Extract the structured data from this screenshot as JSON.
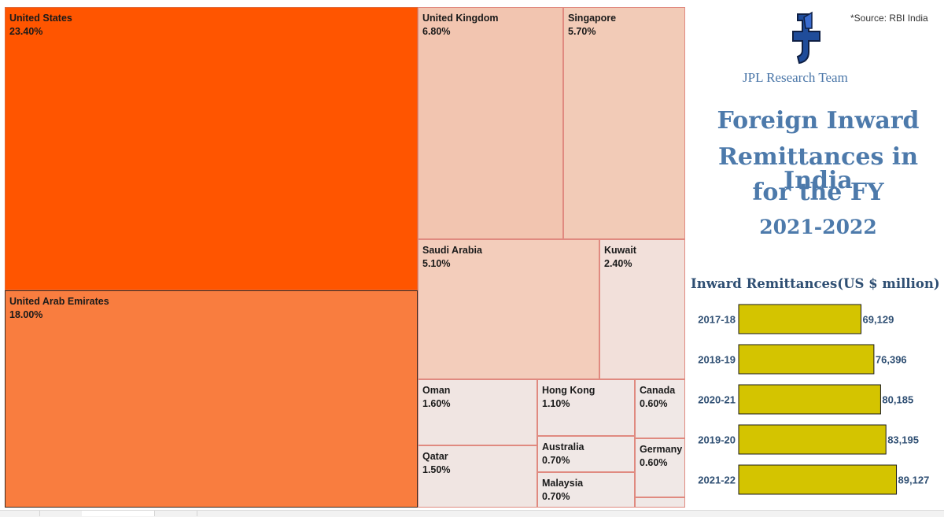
{
  "chart_data": [
    {
      "type": "treemap",
      "items": [
        {
          "name": "United States",
          "label": "23.40%",
          "value": 23.4,
          "color": "#ff5500"
        },
        {
          "name": "United Arab Emirates",
          "label": "18.00%",
          "value": 18.0,
          "color": "#f97d3f"
        },
        {
          "name": "United Kingdom",
          "label": "6.80%",
          "value": 6.8,
          "color": "#f2c5b0"
        },
        {
          "name": "Singapore",
          "label": "5.70%",
          "value": 5.7,
          "color": "#f2cbb7"
        },
        {
          "name": "Saudi Arabia",
          "label": "5.10%",
          "value": 5.1,
          "color": "#f3cdbb"
        },
        {
          "name": "Kuwait",
          "label": "2.40%",
          "value": 2.4,
          "color": "#f2e0da"
        },
        {
          "name": "Oman",
          "label": "1.60%",
          "value": 1.6,
          "color": "#f0e5e2"
        },
        {
          "name": "Qatar",
          "label": "1.50%",
          "value": 1.5,
          "color": "#f0e5e2"
        },
        {
          "name": "Hong Kong",
          "label": "1.10%",
          "value": 1.1,
          "color": "#f0e6e4"
        },
        {
          "name": "Australia",
          "label": "0.70%",
          "value": 0.7,
          "color": "#f0e8e6"
        },
        {
          "name": "Malaysia",
          "label": "0.70%",
          "value": 0.7,
          "color": "#f0e8e6"
        },
        {
          "name": "Canada",
          "label": "0.60%",
          "value": 0.6,
          "color": "#f0e8e6"
        },
        {
          "name": "Germany",
          "label": "0.60%",
          "value": 0.6,
          "color": "#f0e8e6"
        },
        {
          "name": "",
          "label": "",
          "value": 0.1,
          "color": "#f0e8e6"
        }
      ]
    },
    {
      "type": "bar",
      "orientation": "horizontal",
      "title": "Inward Remittances(US $ million)",
      "categories": [
        "2017-18",
        "2018-19",
        "2020-21",
        "2019-20",
        "2021-22"
      ],
      "values": [
        69129,
        76396,
        80185,
        83195,
        89127
      ],
      "value_labels": [
        "69,129",
        "76,396",
        "80,185",
        "83,195",
        "89,127"
      ],
      "bar_color": "#d4c400",
      "xlim": [
        0,
        100000
      ]
    }
  ],
  "header": {
    "source": "*Source: RBI India",
    "team": "JPL Research Team",
    "title_lines": [
      "Foreign Inward",
      "Remittances in India",
      "for the FY",
      "2021-2022"
    ]
  },
  "logo_icon": "jpl-logo-icon",
  "colors": {
    "accent": "#4d7aab",
    "dark_accent": "#2f4f73",
    "border": "#e08a80"
  }
}
